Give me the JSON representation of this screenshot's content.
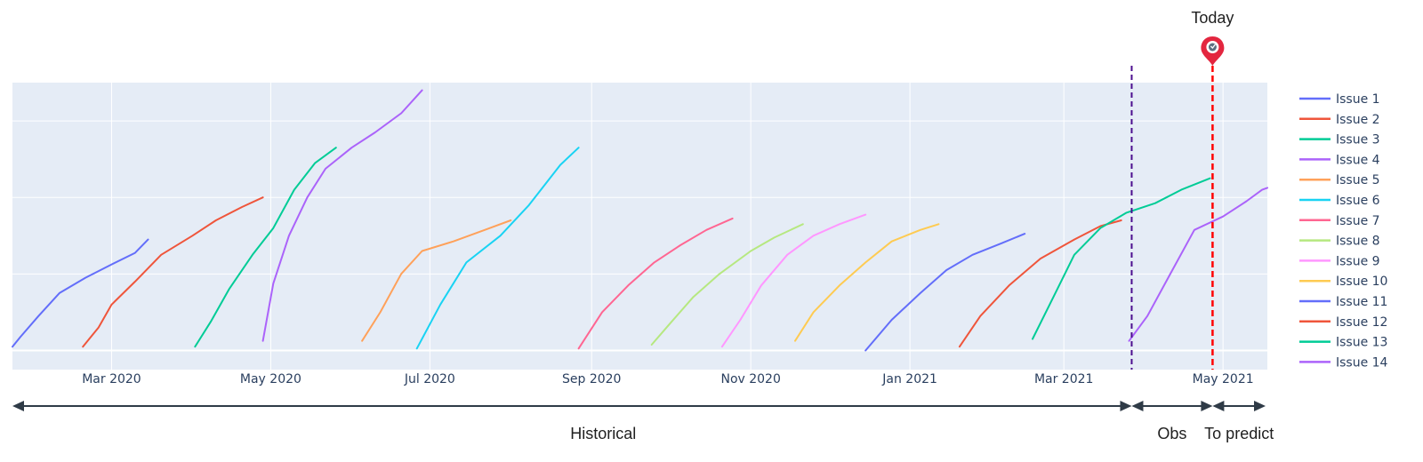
{
  "chart_data": {
    "type": "line",
    "title": "",
    "xlabel": "",
    "ylabel": "",
    "x_tick_labels": [
      "Mar 2020",
      "May 2020",
      "Jul 2020",
      "Sep 2020",
      "Nov 2020",
      "Jan 2021",
      "Mar 2021",
      "May 2021"
    ],
    "x_ticks": [
      "2020-03-01",
      "2020-05-01",
      "2020-07-01",
      "2020-09-01",
      "2020-11-01",
      "2021-01-01",
      "2021-03-01",
      "2021-05-01"
    ],
    "xlim": [
      "2020-01-23",
      "2021-05-18"
    ],
    "ylim": [
      -0.1,
      1.4
    ],
    "y_gridlines": [
      0,
      0.4,
      0.8,
      1.2
    ],
    "y_tick_labels_shown": false,
    "legend_position": "right",
    "grid": true,
    "series": [
      {
        "name": "Issue 1",
        "color": "#636efa",
        "x": [
          "2020-01-23",
          "2020-01-26",
          "2020-02-02",
          "2020-02-10",
          "2020-02-20",
          "2020-03-01",
          "2020-03-10",
          "2020-03-15"
        ],
        "y": [
          0.02,
          0.07,
          0.18,
          0.3,
          0.38,
          0.45,
          0.51,
          0.58
        ]
      },
      {
        "name": "Issue 2",
        "color": "#ef553b",
        "x": [
          "2020-02-19",
          "2020-02-25",
          "2020-03-01",
          "2020-03-10",
          "2020-03-20",
          "2020-04-01",
          "2020-04-10",
          "2020-04-20",
          "2020-04-28"
        ],
        "y": [
          0.02,
          0.12,
          0.24,
          0.36,
          0.5,
          0.6,
          0.68,
          0.75,
          0.8
        ]
      },
      {
        "name": "Issue 3",
        "color": "#00cc96",
        "x": [
          "2020-04-02",
          "2020-04-08",
          "2020-04-15",
          "2020-04-24",
          "2020-05-02",
          "2020-05-10",
          "2020-05-18",
          "2020-05-26"
        ],
        "y": [
          0.02,
          0.15,
          0.32,
          0.5,
          0.64,
          0.84,
          0.98,
          1.06
        ]
      },
      {
        "name": "Issue 4",
        "color": "#ab63fa",
        "x": [
          "2020-04-28",
          "2020-05-02",
          "2020-05-08",
          "2020-05-15",
          "2020-05-22",
          "2020-06-01",
          "2020-06-10",
          "2020-06-20",
          "2020-06-28"
        ],
        "y": [
          0.05,
          0.35,
          0.6,
          0.8,
          0.95,
          1.06,
          1.14,
          1.24,
          1.36
        ]
      },
      {
        "name": "Issue 5",
        "color": "#ffa15a",
        "x": [
          "2020-06-05",
          "2020-06-12",
          "2020-06-20",
          "2020-06-28",
          "2020-07-10",
          "2020-07-22",
          "2020-08-01"
        ],
        "y": [
          0.05,
          0.2,
          0.4,
          0.52,
          0.57,
          0.63,
          0.68
        ]
      },
      {
        "name": "Issue 6",
        "color": "#19d3f3",
        "x": [
          "2020-06-26",
          "2020-07-05",
          "2020-07-15",
          "2020-07-28",
          "2020-08-08",
          "2020-08-20",
          "2020-08-27"
        ],
        "y": [
          0.01,
          0.24,
          0.46,
          0.6,
          0.76,
          0.97,
          1.06
        ]
      },
      {
        "name": "Issue 7",
        "color": "#ff6692",
        "x": [
          "2020-08-27",
          "2020-09-05",
          "2020-09-15",
          "2020-09-25",
          "2020-10-05",
          "2020-10-15",
          "2020-10-25"
        ],
        "y": [
          0.01,
          0.2,
          0.34,
          0.46,
          0.55,
          0.63,
          0.69
        ]
      },
      {
        "name": "Issue 8",
        "color": "#b6e880",
        "x": [
          "2020-09-24",
          "2020-10-01",
          "2020-10-10",
          "2020-10-20",
          "2020-11-01",
          "2020-11-10",
          "2020-11-21"
        ],
        "y": [
          0.03,
          0.14,
          0.28,
          0.4,
          0.52,
          0.59,
          0.66
        ]
      },
      {
        "name": "Issue 9",
        "color": "#ff97ff",
        "x": [
          "2020-10-21",
          "2020-10-28",
          "2020-11-05",
          "2020-11-15",
          "2020-11-25",
          "2020-12-05",
          "2020-12-15"
        ],
        "y": [
          0.02,
          0.16,
          0.34,
          0.5,
          0.6,
          0.66,
          0.71
        ]
      },
      {
        "name": "Issue 10",
        "color": "#fecb52",
        "x": [
          "2020-11-18",
          "2020-11-25",
          "2020-12-05",
          "2020-12-15",
          "2020-12-25",
          "2021-01-05",
          "2021-01-12"
        ],
        "y": [
          0.05,
          0.2,
          0.34,
          0.46,
          0.57,
          0.63,
          0.66
        ]
      },
      {
        "name": "Issue 11",
        "color": "#636efa",
        "x": [
          "2020-12-15",
          "2020-12-25",
          "2021-01-05",
          "2021-01-15",
          "2021-01-25",
          "2021-02-05",
          "2021-02-14"
        ],
        "y": [
          0.0,
          0.16,
          0.3,
          0.42,
          0.5,
          0.56,
          0.61
        ]
      },
      {
        "name": "Issue 12",
        "color": "#ef553b",
        "x": [
          "2021-01-20",
          "2021-01-28",
          "2021-02-08",
          "2021-02-20",
          "2021-03-05",
          "2021-03-15",
          "2021-03-23"
        ],
        "y": [
          0.02,
          0.18,
          0.34,
          0.48,
          0.58,
          0.65,
          0.68
        ]
      },
      {
        "name": "Issue 13",
        "color": "#00cc96",
        "x": [
          "2021-02-17",
          "2021-02-25",
          "2021-03-05",
          "2021-03-15",
          "2021-03-25",
          "2021-04-05",
          "2021-04-15",
          "2021-04-26"
        ],
        "y": [
          0.06,
          0.28,
          0.5,
          0.64,
          0.72,
          0.77,
          0.84,
          0.9
        ]
      },
      {
        "name": "Issue 14",
        "color": "#ab63fa",
        "x": [
          "2021-03-26",
          "2021-04-02",
          "2021-04-10",
          "2021-04-20",
          "2021-05-01",
          "2021-05-10",
          "2021-05-16",
          "2021-05-18"
        ],
        "y": [
          0.05,
          0.18,
          0.38,
          0.63,
          0.7,
          0.78,
          0.84,
          0.85
        ]
      }
    ],
    "vlines": [
      {
        "x": "2021-03-27",
        "color": "#4b0e8f",
        "style": "dash"
      },
      {
        "x": "2021-04-27",
        "color": "#ff0000",
        "style": "dash"
      }
    ],
    "annotations": {
      "today": "Today",
      "historical": "Historical",
      "obs": "Obs",
      "to_predict": "To predict"
    },
    "colors": {
      "plot_background": "#e5ecf6",
      "grid": "#ffffff",
      "arrows": "#2f3b47",
      "pin": "#e3263f"
    }
  },
  "icons": {
    "today_marker": "location-pin-icon"
  }
}
